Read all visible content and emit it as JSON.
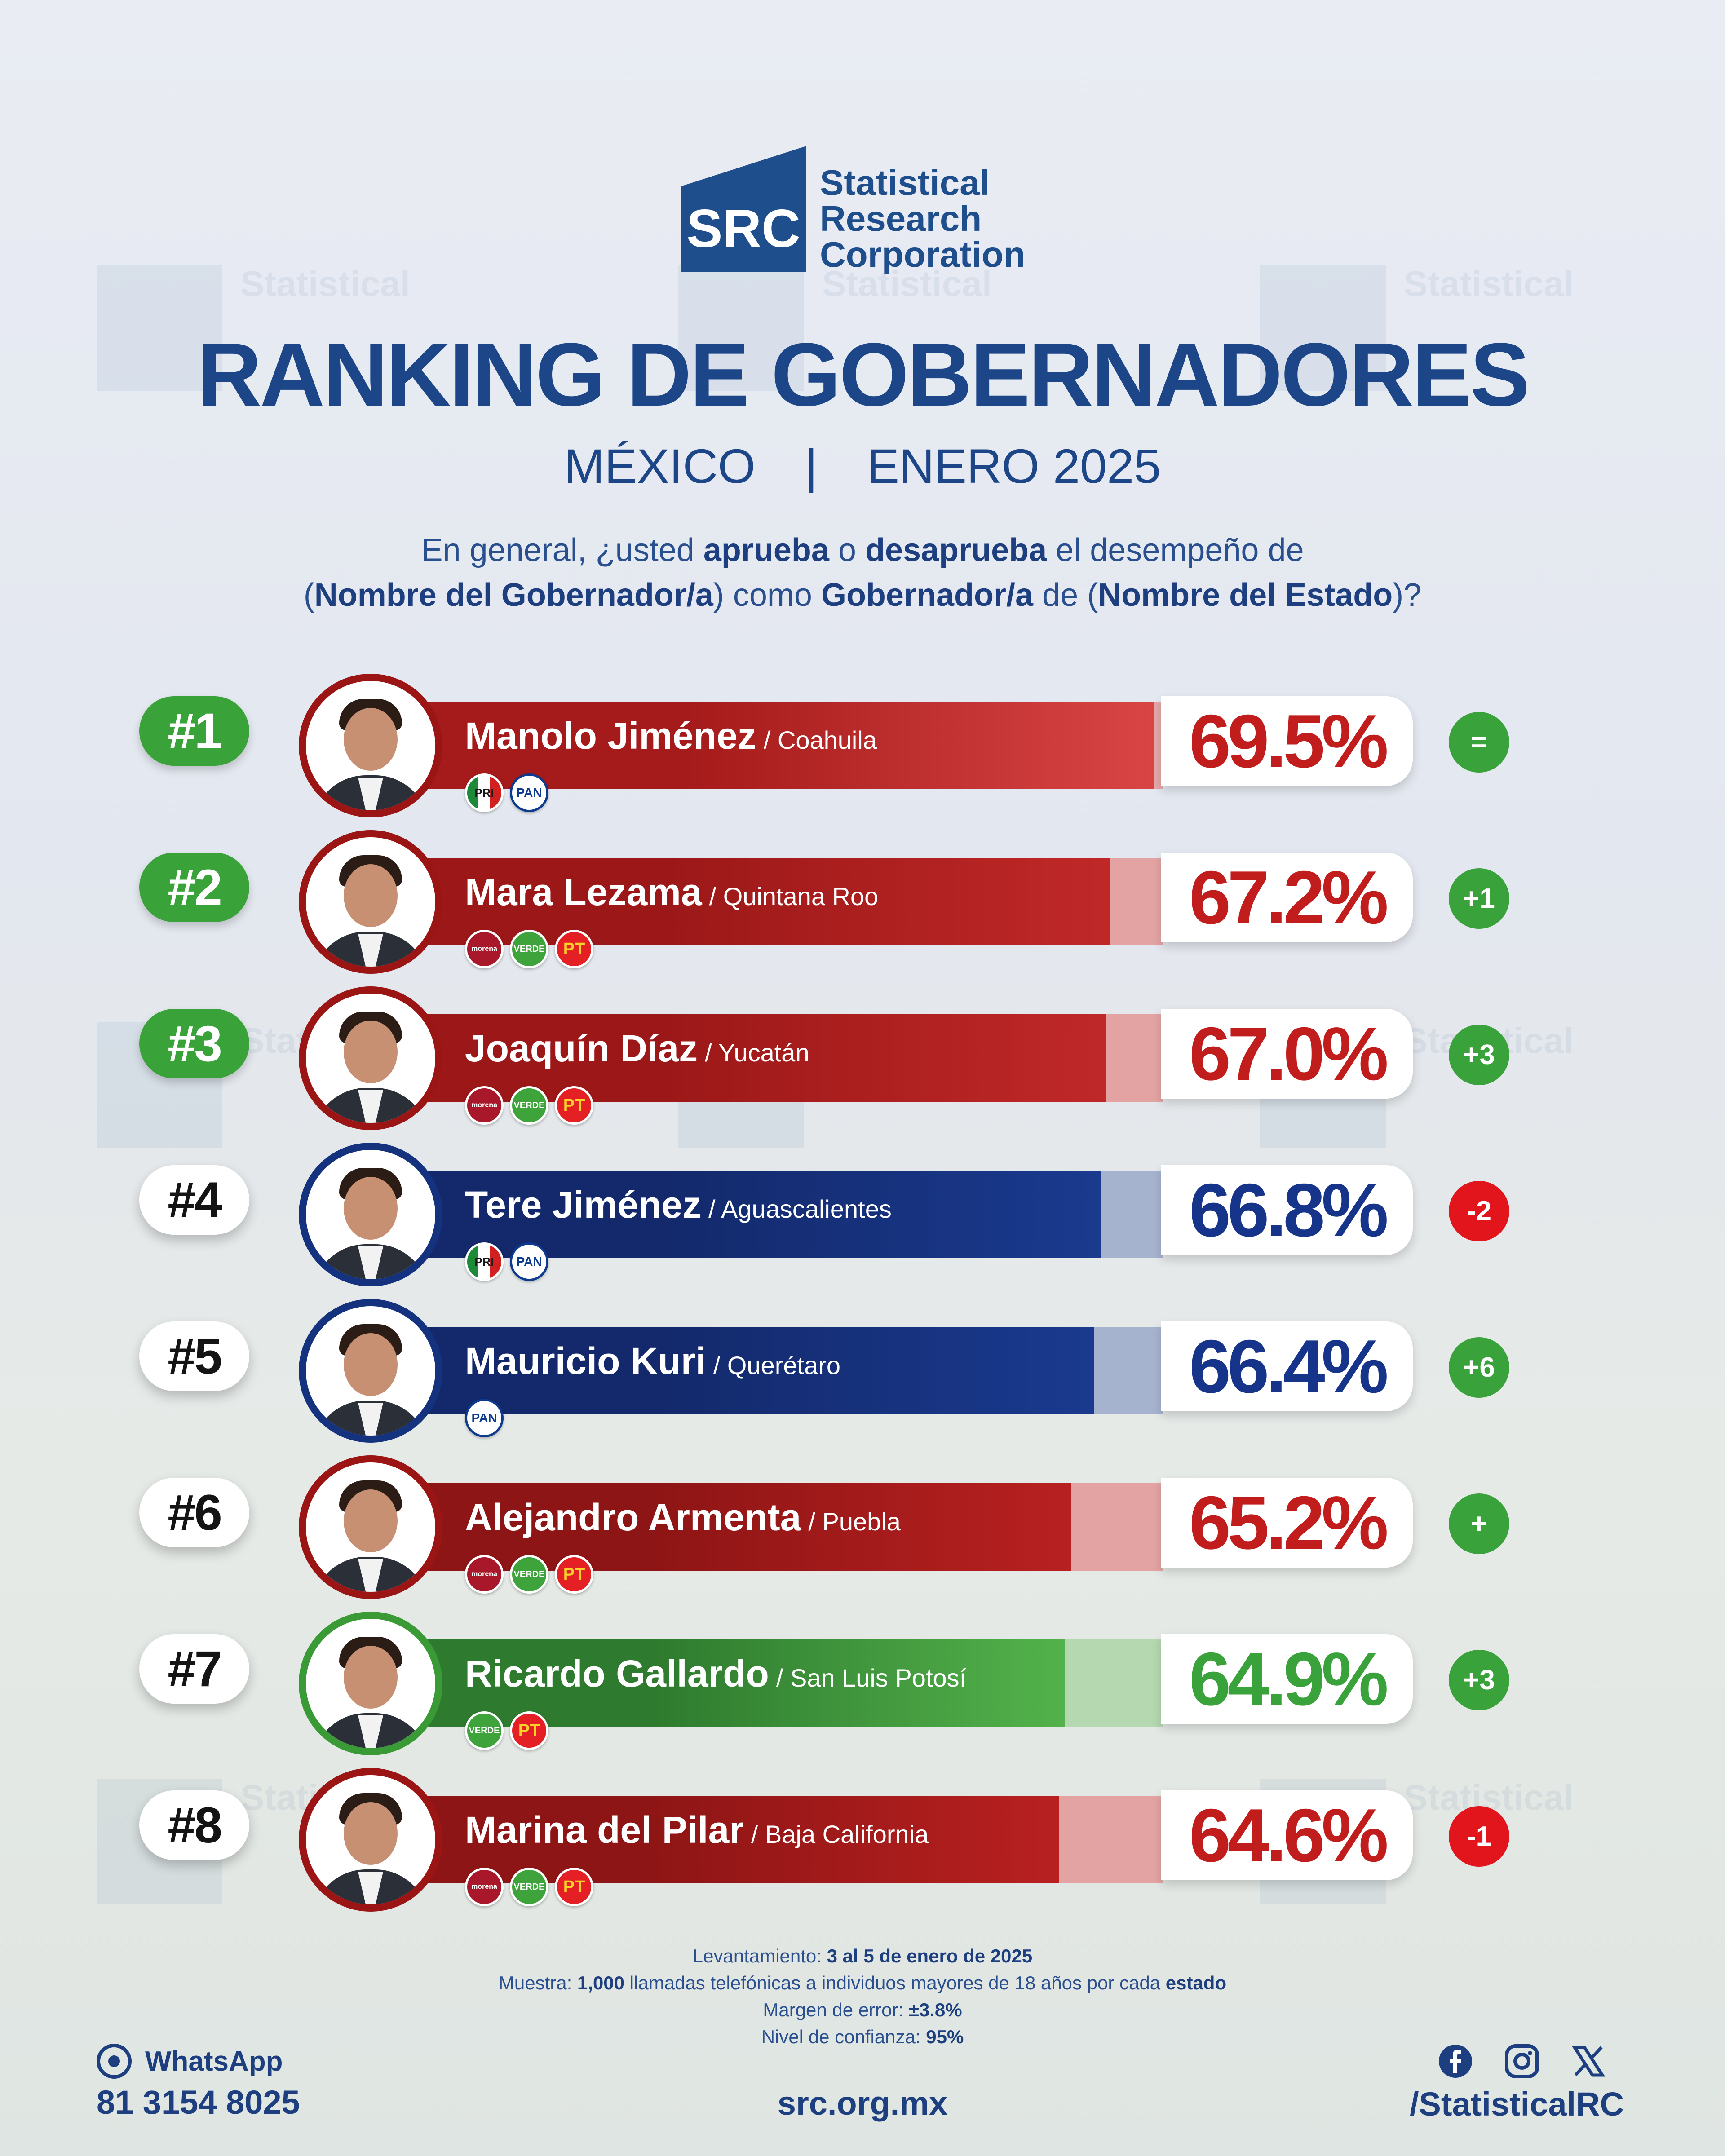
{
  "logo": {
    "mark_text": "SRC",
    "line1": "Statistical",
    "line2": "Research",
    "line3": "Corporation"
  },
  "title": "RANKING DE GOBERNADORES",
  "subtitle": {
    "country": "MÉXICO",
    "separator": "|",
    "period": "ENERO 2025"
  },
  "question": {
    "q1": "En general, ¿usted ",
    "q2": "aprueba",
    "q3": " o ",
    "q4": "desaprueba",
    "q5": " el desempeño de",
    "q6": "(",
    "q7": "Nombre del Gobernador/a",
    "q8": ") como ",
    "q9": "Gobernador/a",
    "q10": " de (",
    "q11": "Nombre del Estado",
    "q12": ")?"
  },
  "chart_data": {
    "type": "bar",
    "title": "RANKING DE GOBERNADORES",
    "categories": [
      "Manolo Jiménez",
      "Mara Lezama",
      "Joaquín Díaz",
      "Tere Jiménez",
      "Mauricio Kuri",
      "Alejandro Armenta",
      "Ricardo Gallardo",
      "Marina del Pilar"
    ],
    "values": [
      69.5,
      67.2,
      67.0,
      66.8,
      66.4,
      65.2,
      64.9,
      64.6
    ],
    "unit": "%",
    "rows": [
      {
        "rank": "#1",
        "name": "Manolo Jiménez",
        "state": "/ Coahuila",
        "value": 69.5,
        "label": "69.5%",
        "change": "=",
        "parties": [
          "PRI",
          "PAN"
        ],
        "bar_color": "#a51a1a",
        "bar_light": "#d94545",
        "rest_color": "#e6a7a7",
        "pct_color": "#c21d1d",
        "ring_color": "#9c1515",
        "rank_style": "green",
        "change_color": "#3aa23a"
      },
      {
        "rank": "#2",
        "name": "Mara Lezama",
        "state": "/ Quintana Roo",
        "value": 67.2,
        "label": "67.2%",
        "change": "+1",
        "parties": [
          "morena",
          "VERDE",
          "PT"
        ],
        "bar_color": "#9c1818",
        "bar_light": "#c02828",
        "rest_color": "#e3a3a3",
        "pct_color": "#c21d1d",
        "ring_color": "#9c1515",
        "rank_style": "green",
        "change_color": "#3aa23a"
      },
      {
        "rank": "#3",
        "name": "Joaquín Díaz",
        "state": "/ Yucatán",
        "value": 67.0,
        "label": "67.0%",
        "change": "+3",
        "parties": [
          "morena",
          "VERDE",
          "PT"
        ],
        "bar_color": "#9c1818",
        "bar_light": "#c02828",
        "rest_color": "#e3a3a3",
        "pct_color": "#c21d1d",
        "ring_color": "#9c1515",
        "rank_style": "green",
        "change_color": "#3aa23a"
      },
      {
        "rank": "#4",
        "name": "Tere Jiménez",
        "state": "/ Aguascalientes",
        "value": 66.8,
        "label": "66.8%",
        "change": "-2",
        "parties": [
          "PRI",
          "PAN"
        ],
        "bar_color": "#13296b",
        "bar_light": "#1a3a8f",
        "rest_color": "#a6b3cf",
        "pct_color": "#16348a",
        "ring_color": "#15327f",
        "rank_style": "white",
        "change_color": "#e2141c"
      },
      {
        "rank": "#5",
        "name": "Mauricio Kuri",
        "state": "/ Querétaro",
        "value": 66.4,
        "label": "66.4%",
        "change": "+6",
        "parties": [
          "PAN"
        ],
        "bar_color": "#13296b",
        "bar_light": "#1a3a8f",
        "rest_color": "#a6b3cf",
        "pct_color": "#16348a",
        "ring_color": "#15327f",
        "rank_style": "white",
        "change_color": "#3aa23a"
      },
      {
        "rank": "#6",
        "name": "Alejandro Armenta",
        "state": "/ Puebla",
        "value": 65.2,
        "label": "65.2%",
        "change": "+",
        "parties": [
          "morena",
          "VERDE",
          "PT"
        ],
        "bar_color": "#8e1515",
        "bar_light": "#b82020",
        "rest_color": "#e3a3a3",
        "pct_color": "#c21d1d",
        "ring_color": "#9c1515",
        "rank_style": "white",
        "change_color": "#3aa23a"
      },
      {
        "rank": "#7",
        "name": "Ricardo Gallardo",
        "state": "/ San Luis Potosí",
        "value": 64.9,
        "label": "64.9%",
        "change": "+3",
        "parties": [
          "VERDE",
          "PT"
        ],
        "bar_color": "#2e7a2e",
        "bar_light": "#53b24b",
        "rest_color": "#b5d8b0",
        "pct_color": "#3aa23a",
        "ring_color": "#3a9a36",
        "rank_style": "white",
        "change_color": "#3aa23a"
      },
      {
        "rank": "#8",
        "name": "Marina del Pilar",
        "state": "/ Baja California",
        "value": 64.6,
        "label": "64.6%",
        "change": "-1",
        "parties": [
          "morena",
          "VERDE",
          "PT"
        ],
        "bar_color": "#8e1515",
        "bar_light": "#b82020",
        "rest_color": "#e3a3a3",
        "pct_color": "#c21d1d",
        "ring_color": "#9c1515",
        "rank_style": "white",
        "change_color": "#e2141c"
      }
    ]
  },
  "notes": {
    "l1a": "Levantamiento: ",
    "l1b": "3 al 5 de enero de 2025",
    "l2a": "Muestra: ",
    "l2b": "1,000",
    "l2c": " llamadas telefónicas a individuos mayores de 18 años por cada ",
    "l2d": "estado",
    "l3a": "Margen de error: ",
    "l3b": "±3.8%",
    "l4a": "Nivel de confianza: ",
    "l4b": "95%"
  },
  "footer": {
    "whatsapp_label": "WhatsApp",
    "whatsapp_phone": "81 3154 8025",
    "website": "src.org.mx",
    "social_handle": "/StatisticalRC",
    "icons": [
      "facebook-icon",
      "instagram-icon",
      "x-icon"
    ]
  }
}
